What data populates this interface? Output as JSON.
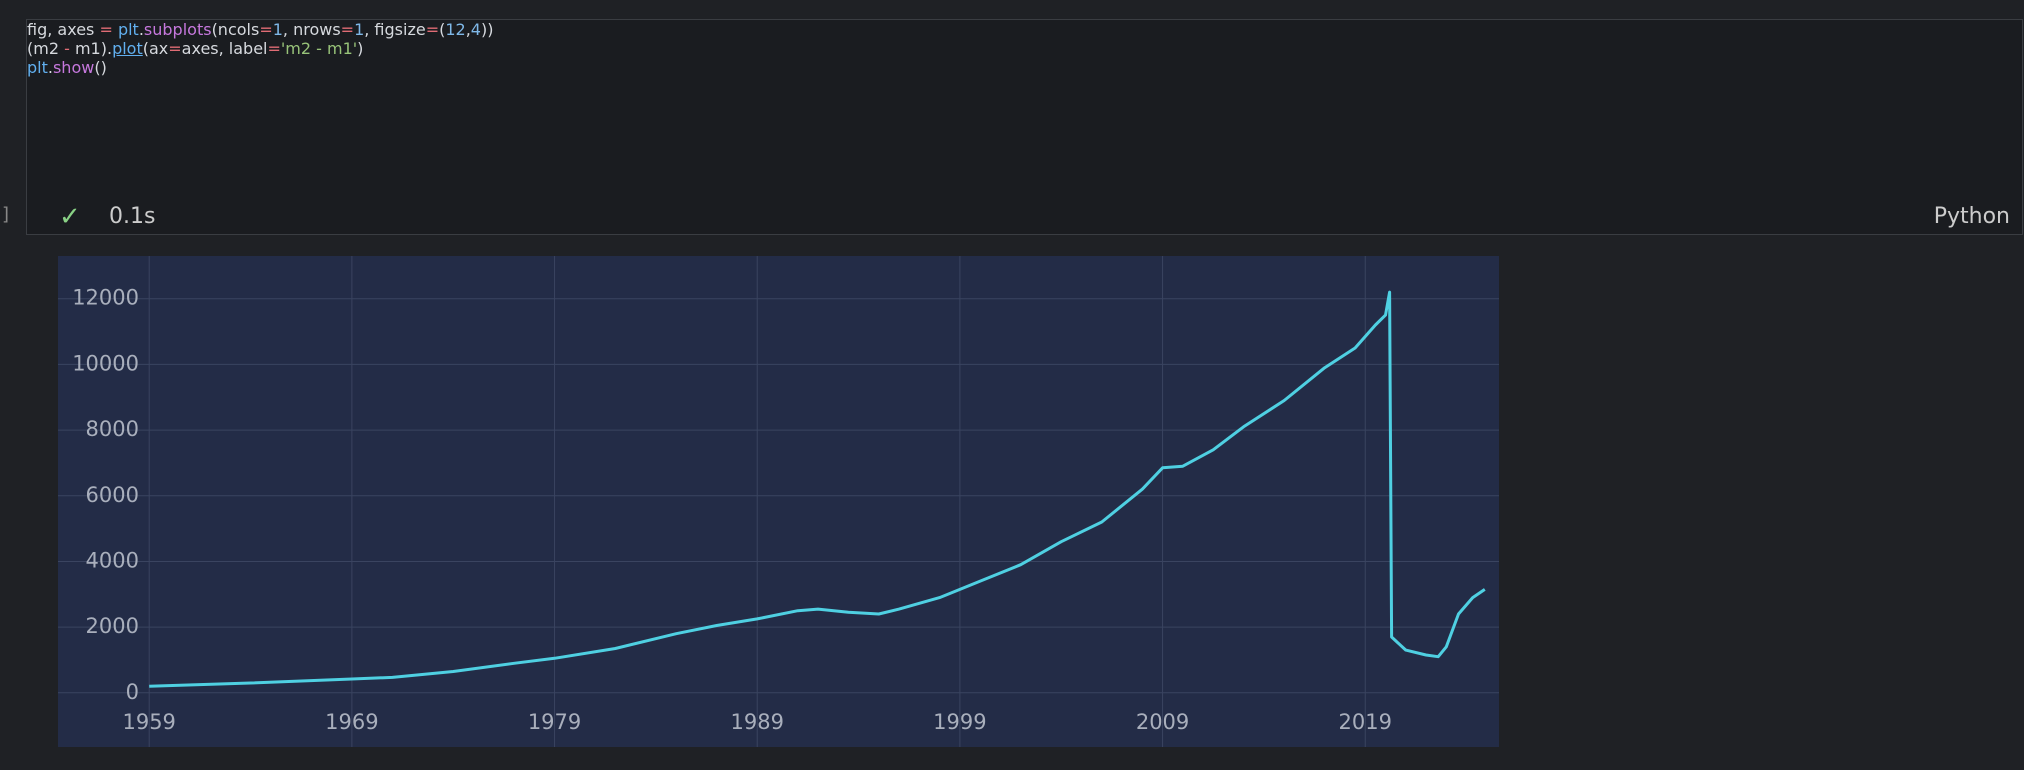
{
  "code": {
    "lines": [
      [
        {
          "text": "fig, axes ",
          "color": "#d6d9de"
        },
        {
          "text": "=",
          "color": "#e06c75"
        },
        {
          "text": " ",
          "color": "#d6d9de"
        },
        {
          "text": "plt",
          "color": "#61afef"
        },
        {
          "text": ".",
          "color": "#d6d9de"
        },
        {
          "text": "subplots",
          "color": "#c678dd"
        },
        {
          "text": "(ncols",
          "color": "#d6d9de"
        },
        {
          "text": "=",
          "color": "#e06c75"
        },
        {
          "text": "1",
          "color": "#7fb8e8"
        },
        {
          "text": ", nrows",
          "color": "#d6d9de"
        },
        {
          "text": "=",
          "color": "#e06c75"
        },
        {
          "text": "1",
          "color": "#7fb8e8"
        },
        {
          "text": ", figsize",
          "color": "#d6d9de"
        },
        {
          "text": "=",
          "color": "#e06c75"
        },
        {
          "text": "(",
          "color": "#d6d9de"
        },
        {
          "text": "12",
          "color": "#7fb8e8"
        },
        {
          "text": ",",
          "color": "#d6d9de"
        },
        {
          "text": "4",
          "color": "#7fb8e8"
        },
        {
          "text": "))",
          "color": "#d6d9de"
        }
      ],
      [
        {
          "text": "(m2 ",
          "color": "#d6d9de"
        },
        {
          "text": "-",
          "color": "#e06c75"
        },
        {
          "text": " m1).",
          "color": "#d6d9de"
        },
        {
          "text": "plot",
          "color": "#61afef"
        },
        {
          "text": "(ax",
          "color": "#d6d9de"
        },
        {
          "text": "=",
          "color": "#e06c75"
        },
        {
          "text": "axes, label",
          "color": "#d6d9de"
        },
        {
          "text": "=",
          "color": "#e06c75"
        },
        {
          "text": "'m2 - m1'",
          "color": "#98c379"
        },
        {
          "text": ")",
          "color": "#d6d9de"
        }
      ],
      [
        {
          "text": "plt",
          "color": "#61afef"
        },
        {
          "text": ".",
          "color": "#d6d9de"
        },
        {
          "text": "show",
          "color": "#c678dd"
        },
        {
          "text": "()",
          "color": "#d6d9de"
        }
      ]
    ]
  },
  "status": {
    "check": "✓",
    "time": "0.1s",
    "language": "Python",
    "bracket": "]"
  },
  "chart_data": {
    "type": "line",
    "x": [
      1959,
      1964,
      1969,
      1971,
      1974,
      1977,
      1979,
      1982,
      1985,
      1987,
      1989,
      1991,
      1992,
      1993.5,
      1995,
      1996,
      1998,
      2000,
      2002,
      2004,
      2006,
      2008,
      2009,
      2010,
      2011.5,
      2013,
      2015,
      2017,
      2018.5,
      2019.5,
      2020.0,
      2020.2,
      2020.3,
      2021,
      2022,
      2022.6,
      2023,
      2023.6,
      2024.3,
      2024.9
    ],
    "series": [
      {
        "name": "m2 - m1",
        "color": "#4fd0e2",
        "values": [
          200,
          300,
          420,
          470,
          650,
          900,
          1050,
          1350,
          1800,
          2050,
          2250,
          2500,
          2550,
          2450,
          2400,
          2550,
          2900,
          3400,
          3900,
          4600,
          5200,
          6200,
          6850,
          6900,
          7400,
          8100,
          8900,
          9900,
          10500,
          11200,
          11500,
          12200,
          1700,
          1300,
          1150,
          1100,
          1400,
          2400,
          2900,
          3150
        ]
      }
    ],
    "xlim": [
      1954.5,
      2025.6
    ],
    "ylim": [
      -1650,
      13300
    ],
    "xticks": [
      1959,
      1969,
      1979,
      1989,
      1999,
      2009,
      2019
    ],
    "yticks": [
      0,
      2000,
      4000,
      6000,
      8000,
      10000,
      12000
    ],
    "grid": true,
    "background": "#232c47"
  }
}
